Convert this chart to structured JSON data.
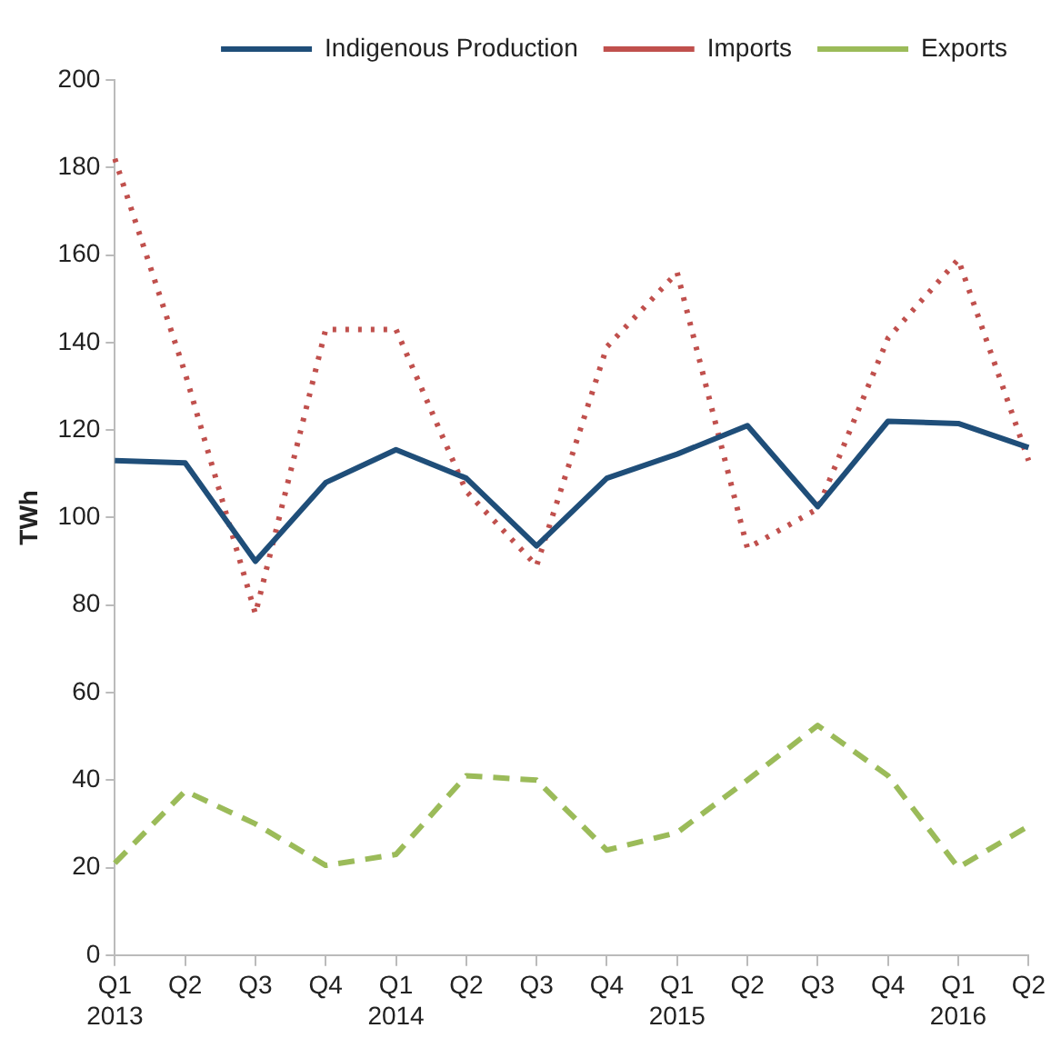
{
  "chart_data": {
    "type": "line",
    "ylabel": "TWh",
    "categories": [
      "Q1\n2013",
      "Q2",
      "Q3",
      "Q4",
      "Q1\n2014",
      "Q2",
      "Q3",
      "Q4",
      "Q1\n2015",
      "Q2",
      "Q3",
      "Q4",
      "Q1\n2016",
      "Q2"
    ],
    "series": [
      {
        "name": "Indigenous Production",
        "color": "#1f4e79",
        "line_style": "solid",
        "values": [
          113,
          112.5,
          90,
          108,
          115.5,
          109,
          93.5,
          109,
          114.5,
          121,
          102.5,
          122,
          121.5,
          116
        ]
      },
      {
        "name": "Imports",
        "color": "#c0504d",
        "line_style": "dotted",
        "values": [
          182,
          133,
          78,
          143,
          143,
          106,
          89,
          139,
          156,
          93,
          102,
          141,
          159,
          113
        ]
      },
      {
        "name": "Exports",
        "color": "#9bbb59",
        "line_style": "dashed",
        "values": [
          21,
          37.5,
          30,
          20.5,
          23,
          41,
          40,
          24,
          28,
          40,
          52.5,
          41,
          20,
          29.5
        ]
      }
    ],
    "ylim": [
      0,
      200
    ],
    "yticks": [
      0,
      20,
      40,
      60,
      80,
      100,
      120,
      140,
      160,
      180,
      200
    ],
    "grid": false,
    "legend": "top",
    "marker": "none"
  }
}
